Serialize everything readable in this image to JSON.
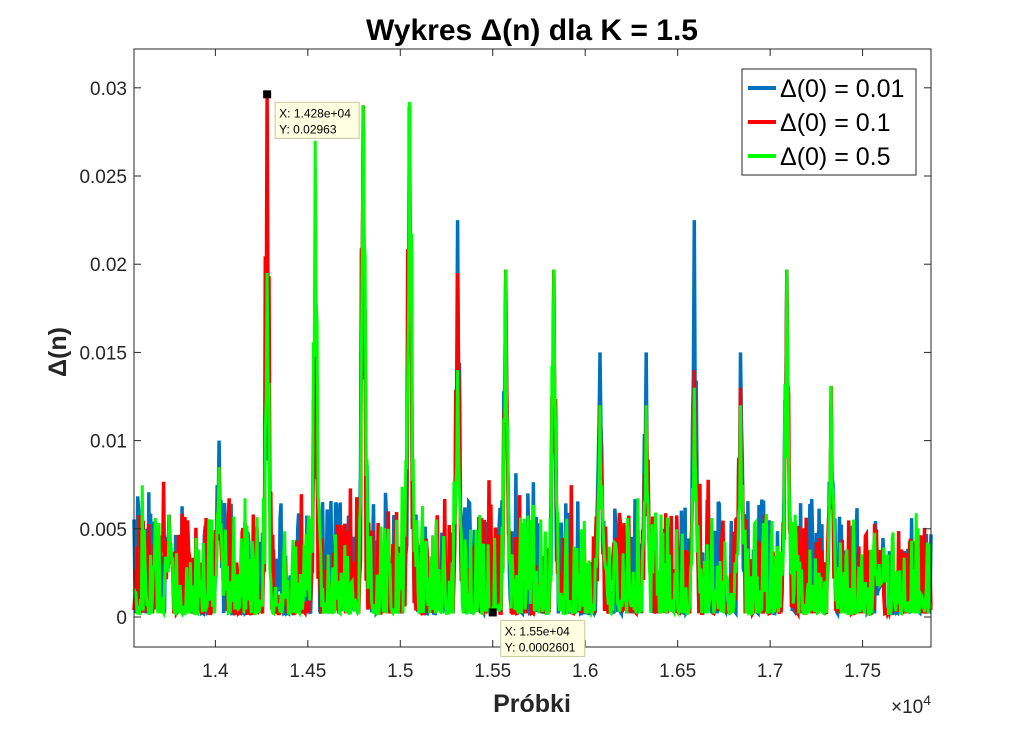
{
  "chart_data": {
    "type": "line",
    "title": "Wykres Δ(n) dla K = 1.5",
    "xlabel": "Próbki",
    "ylabel": "Δ(n)",
    "xlim": [
      13560,
      17870
    ],
    "ylim": [
      -0.0017,
      0.0322
    ],
    "x_exponent_label": "×10",
    "x_exponent_power": "4",
    "x_ticks": [
      14000,
      14500,
      15000,
      15500,
      16000,
      16500,
      17000,
      17500
    ],
    "x_tick_labels": [
      "1.4",
      "1.45",
      "1.5",
      "1.55",
      "1.6",
      "1.65",
      "1.7",
      "1.75"
    ],
    "y_ticks": [
      0,
      0.005,
      0.01,
      0.015,
      0.02,
      0.025,
      0.03
    ],
    "y_tick_labels": [
      "0",
      "0.005",
      "0.01",
      "0.015",
      "0.02",
      "0.025",
      "0.03"
    ],
    "grid": false,
    "legend_position": "top-right",
    "series": [
      {
        "name": "Δ(0) = 0.01",
        "color": "#0072BD",
        "peaks": [
          [
            13750,
            0.0058
          ],
          [
            14020,
            0.01
          ],
          [
            14280,
            0.019
          ],
          [
            14540,
            0.015
          ],
          [
            14800,
            0.029
          ],
          [
            15050,
            0.029
          ],
          [
            15310,
            0.0225
          ],
          [
            15570,
            0.019
          ],
          [
            15830,
            0.0195
          ],
          [
            16080,
            0.015
          ],
          [
            16330,
            0.015
          ],
          [
            16590,
            0.0225
          ],
          [
            16840,
            0.015
          ],
          [
            17090,
            0.0195
          ],
          [
            17330,
            0.012
          ],
          [
            17590,
            0.0025
          ]
        ],
        "baseline_max": 0.0065
      },
      {
        "name": "Δ(0) = 0.1",
        "color": "#FF0000",
        "peaks": [
          [
            13750,
            0.0058
          ],
          [
            14020,
            0.0085
          ],
          [
            14280,
            0.0296
          ],
          [
            14540,
            0.0197
          ],
          [
            14800,
            0.029
          ],
          [
            15050,
            0.029
          ],
          [
            15310,
            0.0195
          ],
          [
            15570,
            0.0197
          ],
          [
            15830,
            0.0197
          ],
          [
            16080,
            0.012
          ],
          [
            16330,
            0.012
          ],
          [
            16590,
            0.014
          ],
          [
            16840,
            0.013
          ],
          [
            17090,
            0.0197
          ],
          [
            17330,
            0.0131
          ],
          [
            17590,
            0.0038
          ]
        ],
        "baseline_max": 0.0058
      },
      {
        "name": "Δ(0) = 0.5",
        "color": "#00FF00",
        "peaks": [
          [
            13750,
            0.0058
          ],
          [
            14020,
            0.0085
          ],
          [
            14280,
            0.0195
          ],
          [
            14540,
            0.027
          ],
          [
            14800,
            0.029
          ],
          [
            15050,
            0.0292
          ],
          [
            15310,
            0.014
          ],
          [
            15570,
            0.0197
          ],
          [
            15830,
            0.0197
          ],
          [
            16080,
            0.012
          ],
          [
            16330,
            0.012
          ],
          [
            16590,
            0.013
          ],
          [
            16840,
            0.012
          ],
          [
            17090,
            0.0197
          ],
          [
            17330,
            0.0131
          ],
          [
            17590,
            0.003
          ]
        ],
        "baseline_max": 0.0058
      }
    ],
    "datatips": [
      {
        "x": 14280,
        "y": 0.02963,
        "x_label": "X: 1.428e+04",
        "y_label": "Y: 0.02963"
      },
      {
        "x": 15500,
        "y": 0.0002601,
        "x_label": "X: 1.55e+04",
        "y_label": "Y: 0.0002601"
      }
    ]
  }
}
